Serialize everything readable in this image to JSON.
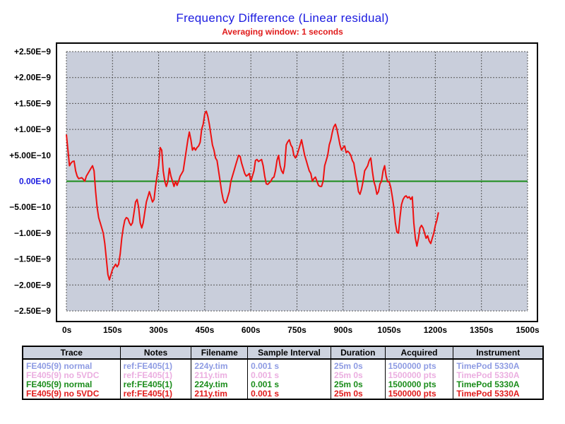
{
  "chart_data": {
    "type": "line",
    "title": "Frequency Difference  (Linear residual)",
    "subtitle": "Averaging window: 1 seconds",
    "xlabel": "",
    "ylabel": "",
    "xlim": [
      0,
      1500
    ],
    "ylim": [
      -2.5e-09,
      2.5e-09
    ],
    "grid": true,
    "x_ticks": [
      0,
      150,
      300,
      450,
      600,
      750,
      900,
      1050,
      1200,
      1350,
      1500
    ],
    "x_tick_labels": [
      "0s",
      "150s",
      "300s",
      "450s",
      "600s",
      "750s",
      "900s",
      "1050s",
      "1200s",
      "1350s",
      "1500s"
    ],
    "y_ticks": [
      2.5e-09,
      2e-09,
      1.5e-09,
      1e-09,
      5e-10,
      0,
      -5e-10,
      -1e-09,
      -1.5e-09,
      -2e-09,
      -2.5e-09
    ],
    "y_tick_labels": [
      "+2.50E−9",
      "+2.00E−9",
      "+1.50E−9",
      "+1.00E−9",
      "+5.00E−10",
      "0.00E+0",
      "−5.00E−10",
      "−1.00E−9",
      "−1.50E−9",
      "−2.00E−9",
      "−2.50E−9"
    ],
    "zero_line_color": "#1a8c1a",
    "series": [
      {
        "name": "FE405(9) no 5VDC",
        "color": "#ee1111",
        "points": [
          [
            0,
            9e-10
          ],
          [
            5,
            6e-10
          ],
          [
            10,
            3e-10
          ],
          [
            15,
            3.5e-10
          ],
          [
            20,
            3.8e-10
          ],
          [
            25,
            3.9e-10
          ],
          [
            30,
            2e-10
          ],
          [
            35,
            1e-10
          ],
          [
            40,
            5e-11
          ],
          [
            45,
            6e-11
          ],
          [
            50,
            7e-11
          ],
          [
            55,
            4e-11
          ],
          [
            60,
            0.0
          ],
          [
            65,
            1e-10
          ],
          [
            70,
            1.5e-10
          ],
          [
            75,
            2e-10
          ],
          [
            80,
            2.5e-10
          ],
          [
            85,
            3e-10
          ],
          [
            90,
            2e-10
          ],
          [
            95,
            -2e-10
          ],
          [
            100,
            -5e-10
          ],
          [
            105,
            -7e-10
          ],
          [
            110,
            -8e-10
          ],
          [
            115,
            -9e-10
          ],
          [
            120,
            -1e-09
          ],
          [
            125,
            -1.2e-09
          ],
          [
            130,
            -1.5e-09
          ],
          [
            135,
            -1.8e-09
          ],
          [
            140,
            -1.9e-09
          ],
          [
            145,
            -1.8e-09
          ],
          [
            150,
            -1.7e-09
          ],
          [
            155,
            -1.65e-09
          ],
          [
            160,
            -1.6e-09
          ],
          [
            165,
            -1.65e-09
          ],
          [
            170,
            -1.6e-09
          ],
          [
            175,
            -1.4e-09
          ],
          [
            180,
            -1.1e-09
          ],
          [
            185,
            -9e-10
          ],
          [
            190,
            -7.5e-10
          ],
          [
            195,
            -7e-10
          ],
          [
            200,
            -7.2e-10
          ],
          [
            205,
            -8e-10
          ],
          [
            210,
            -8.5e-10
          ],
          [
            215,
            -8e-10
          ],
          [
            220,
            -6e-10
          ],
          [
            225,
            -4e-10
          ],
          [
            230,
            -3.5e-10
          ],
          [
            235,
            -5e-10
          ],
          [
            240,
            -8e-10
          ],
          [
            245,
            -9e-10
          ],
          [
            250,
            -8e-10
          ],
          [
            255,
            -6e-10
          ],
          [
            260,
            -4e-10
          ],
          [
            265,
            -3e-10
          ],
          [
            270,
            -2e-10
          ],
          [
            275,
            -3e-10
          ],
          [
            280,
            -4e-10
          ],
          [
            285,
            -3.5e-10
          ],
          [
            290,
            -1e-10
          ],
          [
            295,
            1e-10
          ],
          [
            300,
            3e-10
          ],
          [
            305,
            6.5e-10
          ],
          [
            310,
            6e-10
          ],
          [
            315,
            2e-10
          ],
          [
            320,
            0.0
          ],
          [
            325,
            -1e-10
          ],
          [
            330,
            0.0
          ],
          [
            335,
            2.5e-10
          ],
          [
            340,
            1e-10
          ],
          [
            345,
            0.0
          ],
          [
            350,
            -1e-10
          ],
          [
            355,
            0.0
          ],
          [
            360,
            -8e-11
          ],
          [
            365,
            0.0
          ],
          [
            370,
            1e-10
          ],
          [
            375,
            1.5e-10
          ],
          [
            380,
            2e-10
          ],
          [
            385,
            4e-10
          ],
          [
            390,
            6e-10
          ],
          [
            395,
            8e-10
          ],
          [
            400,
            9.5e-10
          ],
          [
            405,
            8e-10
          ],
          [
            410,
            6e-10
          ],
          [
            415,
            6.5e-10
          ],
          [
            420,
            6e-10
          ],
          [
            425,
            6.5e-10
          ],
          [
            430,
            6.8e-10
          ],
          [
            435,
            7.5e-10
          ],
          [
            440,
            1e-09
          ],
          [
            445,
            1.1e-09
          ],
          [
            450,
            1.3e-09
          ],
          [
            455,
            1.35e-09
          ],
          [
            460,
            1.25e-09
          ],
          [
            465,
            1.1e-09
          ],
          [
            470,
            9e-10
          ],
          [
            475,
            7e-10
          ],
          [
            480,
            6e-10
          ],
          [
            485,
            4.5e-10
          ],
          [
            490,
            4e-10
          ],
          [
            495,
            2e-10
          ],
          [
            500,
            0.0
          ],
          [
            505,
            -2e-10
          ],
          [
            510,
            -3.5e-10
          ],
          [
            515,
            -4.2e-10
          ],
          [
            520,
            -4e-10
          ],
          [
            525,
            -3e-10
          ],
          [
            530,
            -2e-10
          ],
          [
            535,
            0.0
          ],
          [
            540,
            1e-10
          ],
          [
            545,
            2e-10
          ],
          [
            550,
            3e-10
          ],
          [
            555,
            4e-10
          ],
          [
            560,
            5e-10
          ],
          [
            565,
            4.8e-10
          ],
          [
            570,
            3.5e-10
          ],
          [
            575,
            2.5e-10
          ],
          [
            580,
            1.5e-10
          ],
          [
            585,
            1e-10
          ],
          [
            590,
            1.2e-10
          ],
          [
            595,
            1.5e-10
          ],
          [
            600,
            0.0
          ],
          [
            605,
            1e-10
          ],
          [
            610,
            2e-10
          ],
          [
            615,
            4e-10
          ],
          [
            620,
            4.2e-10
          ],
          [
            625,
            3.8e-10
          ],
          [
            630,
            4e-10
          ],
          [
            635,
            4.2e-10
          ],
          [
            640,
            3e-10
          ],
          [
            645,
            1e-10
          ],
          [
            650,
            -5e-11
          ],
          [
            655,
            -6e-11
          ],
          [
            660,
            -3e-11
          ],
          [
            665,
            0.0
          ],
          [
            670,
            6e-11
          ],
          [
            675,
            8e-11
          ],
          [
            680,
            2e-10
          ],
          [
            685,
            4e-10
          ],
          [
            690,
            5e-10
          ],
          [
            695,
            3e-10
          ],
          [
            700,
            2e-10
          ],
          [
            705,
            1.5e-10
          ],
          [
            710,
            3e-10
          ],
          [
            715,
            7e-10
          ],
          [
            720,
            7.6e-10
          ],
          [
            725,
            8e-10
          ],
          [
            730,
            7e-10
          ],
          [
            735,
            6.5e-10
          ],
          [
            740,
            5e-10
          ],
          [
            745,
            4.5e-10
          ],
          [
            750,
            5e-10
          ],
          [
            755,
            6e-10
          ],
          [
            760,
            7e-10
          ],
          [
            765,
            8e-10
          ],
          [
            770,
            6.5e-10
          ],
          [
            775,
            5e-10
          ],
          [
            780,
            4e-10
          ],
          [
            785,
            3e-10
          ],
          [
            790,
            2e-10
          ],
          [
            795,
            1.5e-10
          ],
          [
            800,
            0.0
          ],
          [
            805,
            5e-11
          ],
          [
            810,
            8e-11
          ],
          [
            815,
            0.0
          ],
          [
            820,
            -8e-11
          ],
          [
            825,
            -1e-10
          ],
          [
            830,
            -1e-10
          ],
          [
            835,
            0.0
          ],
          [
            840,
            3e-10
          ],
          [
            845,
            4e-10
          ],
          [
            850,
            5e-10
          ],
          [
            855,
            7e-10
          ],
          [
            860,
            8e-10
          ],
          [
            865,
            9.5e-10
          ],
          [
            870,
            1.05e-09
          ],
          [
            875,
            1.1e-09
          ],
          [
            880,
            1e-09
          ],
          [
            885,
            8.5e-10
          ],
          [
            890,
            7e-10
          ],
          [
            895,
            6e-10
          ],
          [
            900,
            6.5e-10
          ],
          [
            905,
            6.8e-10
          ],
          [
            910,
            5.5e-10
          ],
          [
            915,
            5.8e-10
          ],
          [
            920,
            5.5e-10
          ],
          [
            925,
            5e-10
          ],
          [
            930,
            4e-10
          ],
          [
            935,
            3.5e-10
          ],
          [
            940,
            1.5e-10
          ],
          [
            945,
            0.0
          ],
          [
            950,
            -2e-10
          ],
          [
            955,
            -2.5e-10
          ],
          [
            960,
            -1.5e-10
          ],
          [
            965,
            0.0
          ],
          [
            970,
            2e-10
          ],
          [
            975,
            2.5e-10
          ],
          [
            980,
            3e-10
          ],
          [
            985,
            4e-10
          ],
          [
            990,
            4.5e-10
          ],
          [
            995,
            2e-10
          ],
          [
            1000,
            0.0
          ],
          [
            1005,
            -1e-10
          ],
          [
            1010,
            -2.5e-10
          ],
          [
            1015,
            -2e-10
          ],
          [
            1020,
            -5e-11
          ],
          [
            1025,
            0.0
          ],
          [
            1030,
            2e-10
          ],
          [
            1035,
            3e-10
          ],
          [
            1040,
            1e-10
          ],
          [
            1045,
            -1e-11
          ],
          [
            1050,
            -1e-11
          ],
          [
            1055,
            -1.2e-10
          ],
          [
            1060,
            -3e-10
          ],
          [
            1065,
            -5e-10
          ],
          [
            1070,
            -8e-10
          ],
          [
            1075,
            -9.8e-10
          ],
          [
            1080,
            -1e-09
          ],
          [
            1085,
            -7e-10
          ],
          [
            1090,
            -4.5e-10
          ],
          [
            1095,
            -3.5e-10
          ],
          [
            1100,
            -3e-10
          ],
          [
            1105,
            -2.8e-10
          ],
          [
            1110,
            -3.2e-10
          ],
          [
            1115,
            -3e-10
          ],
          [
            1120,
            -3.5e-10
          ],
          [
            1125,
            -3e-10
          ],
          [
            1130,
            -8e-10
          ],
          [
            1135,
            -1.1e-09
          ],
          [
            1140,
            -1.25e-09
          ],
          [
            1145,
            -1.1e-09
          ],
          [
            1150,
            -9e-10
          ],
          [
            1155,
            -8.5e-10
          ],
          [
            1160,
            -9e-10
          ],
          [
            1165,
            -1e-09
          ],
          [
            1170,
            -1.1e-09
          ],
          [
            1175,
            -1.05e-09
          ],
          [
            1180,
            -1.15e-09
          ],
          [
            1185,
            -1.2e-09
          ],
          [
            1190,
            -1.1e-09
          ],
          [
            1195,
            -1e-09
          ],
          [
            1200,
            -8.5e-10
          ],
          [
            1205,
            -7.5e-10
          ],
          [
            1210,
            -6e-10
          ]
        ]
      }
    ]
  },
  "legend_table": {
    "headers": [
      "Trace",
      "Notes",
      "Filename",
      "Sample Interval",
      "Duration",
      "Acquired",
      "Instrument"
    ],
    "rows": [
      {
        "color": "#8e9be3",
        "cells": [
          "FE405(9) normal",
          "ref:FE405(1)",
          "224y.tim",
          "0.001 s",
          "25m 0s",
          "1500000 pts",
          "TimePod 5330A"
        ]
      },
      {
        "color": "#ebaee0",
        "cells": [
          "FE405(9) no 5VDC",
          "ref:FE405(1)",
          "211y.tim",
          "0.001 s",
          "25m 0s",
          "1500000 pts",
          "TimePod 5330A"
        ]
      },
      {
        "color": "#1a8c1a",
        "cells": [
          "FE405(9) normal",
          "ref:FE405(1)",
          "224y.tim",
          "0.001 s",
          "25m 0s",
          "1500000 pts",
          "TimePod 5330A"
        ]
      },
      {
        "color": "#e01b1b",
        "cells": [
          "FE405(9) no 5VDC",
          "ref:FE405(1)",
          "211y.tim",
          "0.001 s",
          "25m 0s",
          "1500000 pts",
          "TimePod 5330A"
        ]
      }
    ]
  },
  "colors": {
    "title": "#1b1be0",
    "subtitle": "#e01b1b",
    "plot_background": "#c9cedb",
    "zero_label": "#1b1be0"
  }
}
